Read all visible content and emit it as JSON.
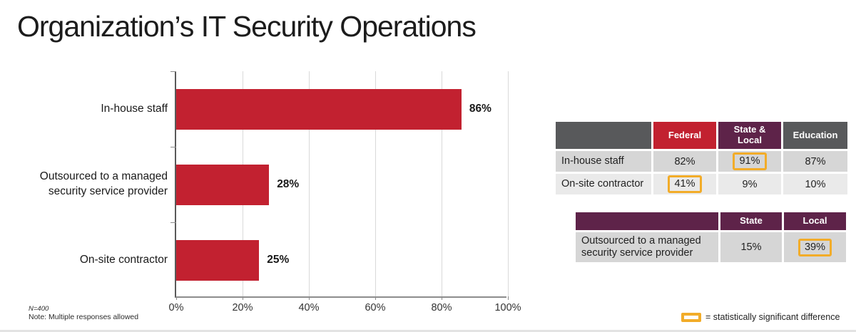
{
  "page": {
    "title": "Organization’s IT Security Operations"
  },
  "footnotes": {
    "sample": "N=400",
    "note": "Note: Multiple responses allowed"
  },
  "legend": {
    "label": "= statistically significant difference"
  },
  "colors": {
    "bar_red": "#c22130",
    "purple": "#5e2349",
    "header_gray": "#58595b",
    "row_gray_dark": "#d6d6d6",
    "row_gray_light": "#eaeaea",
    "highlight_orange": "#f2ac29",
    "grid_line": "#d9d9d9",
    "axis": "#8c8c8c",
    "text_dark": "#1a1a1a"
  },
  "chart_data": [
    {
      "type": "bar",
      "orientation": "horizontal",
      "title": "Organization’s IT Security Operations",
      "categories": [
        "In-house staff",
        "Outsourced to a managed security service provider",
        "On-site contractor"
      ],
      "values": [
        86,
        28,
        25
      ],
      "value_labels": [
        "86%",
        "28%",
        "25%"
      ],
      "xlim": [
        0,
        100
      ],
      "x_ticks": [
        "0%",
        "20%",
        "40%",
        "60%",
        "80%",
        "100%"
      ],
      "grid": true,
      "bar_color": "#c22130",
      "xlabel": "",
      "ylabel": ""
    },
    {
      "type": "table",
      "columns": [
        "",
        "Federal",
        "State & Local",
        "Education"
      ],
      "header_colors": [
        "#58595b",
        "#c22130",
        "#5e2349",
        "#58595b"
      ],
      "rows": [
        {
          "label": "In-house staff",
          "values": [
            "82%",
            "91%",
            "87%"
          ],
          "highlights": [
            false,
            true,
            false
          ]
        },
        {
          "label": "On-site contractor",
          "values": [
            "41%",
            "9%",
            "10%"
          ],
          "highlights": [
            true,
            false,
            false
          ]
        }
      ]
    },
    {
      "type": "table",
      "columns": [
        "",
        "State",
        "Local"
      ],
      "header_colors": [
        "#5e2349",
        "#5e2349",
        "#5e2349"
      ],
      "rows": [
        {
          "label": "Outsourced to a managed security service provider",
          "values": [
            "15%",
            "39%"
          ],
          "highlights": [
            false,
            true
          ]
        }
      ]
    }
  ]
}
